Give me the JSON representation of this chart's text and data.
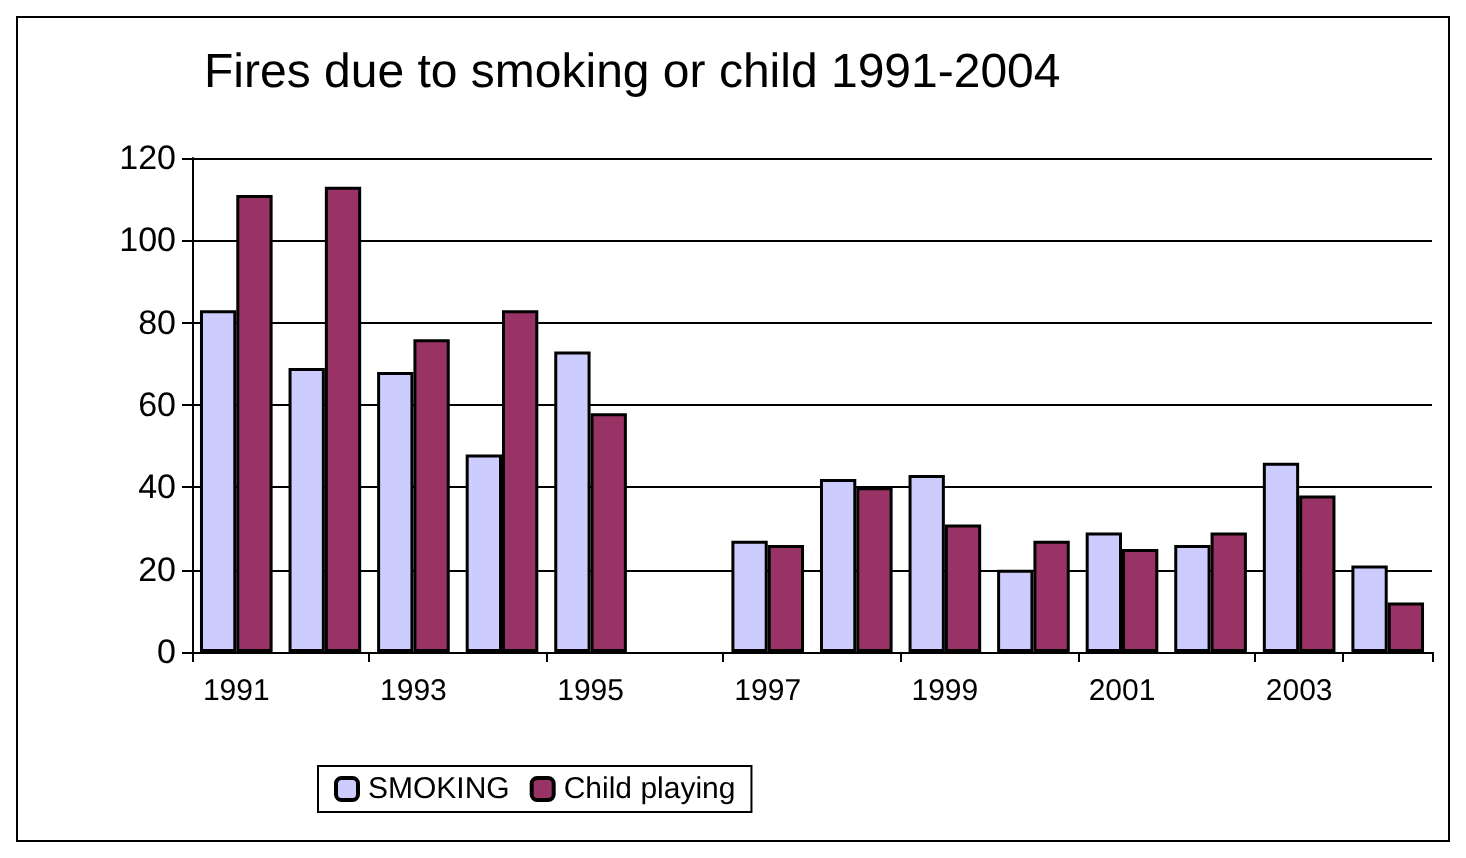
{
  "chart_data": {
    "type": "bar",
    "title": "Fires due to smoking or child 1991-2004",
    "categories": [
      "1991",
      null,
      "1993",
      null,
      "1995",
      null,
      "1997",
      null,
      "1999",
      null,
      "2001",
      null,
      "2003",
      null
    ],
    "series": [
      {
        "name": "SMOKING",
        "color": "#ccccff",
        "values": [
          83,
          69,
          68,
          48,
          73,
          null,
          27,
          42,
          43,
          20,
          29,
          26,
          46,
          21
        ]
      },
      {
        "name": "Child playing",
        "color": "#993366",
        "values": [
          111,
          113,
          76,
          83,
          58,
          null,
          26,
          40,
          31,
          27,
          25,
          29,
          38,
          12
        ]
      }
    ],
    "ylim": [
      0,
      120
    ],
    "yticks": [
      0,
      20,
      40,
      60,
      80,
      100,
      120
    ],
    "grid": "y",
    "legend": "bottom"
  }
}
